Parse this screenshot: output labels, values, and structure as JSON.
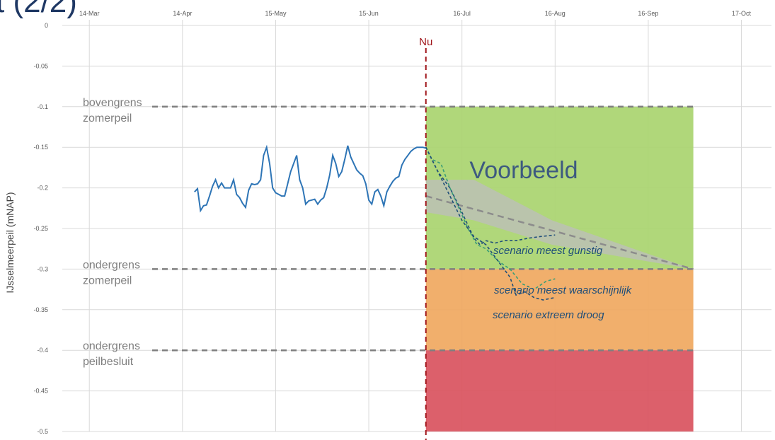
{
  "page": {
    "title_fragment": "t (2/2)"
  },
  "chart_data": {
    "type": "line",
    "title": "",
    "xlabel": "",
    "ylabel": "IJsselmeerpeil (mNAP)",
    "ylim": [
      -0.5,
      0
    ],
    "y_ticks": [
      "0",
      "-0.05",
      "-0.1",
      "-0.15",
      "-0.2",
      "-0.25",
      "-0.3",
      "-0.35",
      "-0.4",
      "-0.45",
      "-0.5"
    ],
    "x_range": [
      "2020-03-05",
      "2020-10-27"
    ],
    "x_ticks": [
      {
        "date": "2020-03-14",
        "label": "14-Mar"
      },
      {
        "date": "2020-04-14",
        "label": "14-Apr"
      },
      {
        "date": "2020-05-15",
        "label": "15-May"
      },
      {
        "date": "2020-06-15",
        "label": "15-Jun"
      },
      {
        "date": "2020-07-16",
        "label": "16-Jul"
      },
      {
        "date": "2020-08-16",
        "label": "16-Aug"
      },
      {
        "date": "2020-09-16",
        "label": "16-Sep"
      },
      {
        "date": "2020-10-17",
        "label": "17-Oct"
      }
    ],
    "now": {
      "date": "2020-07-04",
      "label": "Nu",
      "color": "#a0161b"
    },
    "watermark": {
      "text": "Voorbeeld",
      "color": "#3d5a80"
    },
    "zones": [
      {
        "y_top": -0.1,
        "y_bottom": -0.3,
        "color": "#a9d46f"
      },
      {
        "y_top": -0.3,
        "y_bottom": -0.4,
        "color": "#f0a860"
      },
      {
        "y_top": -0.4,
        "y_bottom": -0.5,
        "color": "#d9525e"
      }
    ],
    "zone_x_range": [
      "2020-07-04",
      "2020-10-01"
    ],
    "reference_lines": [
      {
        "y": -0.1,
        "label": [
          "bovengrens",
          "zomerpeil"
        ]
      },
      {
        "y": -0.3,
        "label": [
          "ondergrens",
          "zomerpeil"
        ]
      },
      {
        "y": -0.4,
        "label": [
          "ondergrens",
          "peilbesluit"
        ]
      }
    ],
    "uncertainty_band": {
      "x": [
        "2020-07-04",
        "2020-07-20",
        "2020-08-15",
        "2020-09-15",
        "2020-10-01"
      ],
      "upper": [
        -0.19,
        -0.19,
        -0.24,
        -0.28,
        -0.3
      ],
      "lower": [
        -0.23,
        -0.24,
        -0.27,
        -0.29,
        -0.3
      ],
      "color": "#bdbdbd"
    },
    "series": [
      {
        "name": "",
        "style": "observed",
        "color": "#2e75b6",
        "x": [
          "2020-04-18",
          "2020-04-19",
          "2020-04-20",
          "2020-04-21",
          "2020-04-22",
          "2020-04-23",
          "2020-04-24",
          "2020-04-25",
          "2020-04-26",
          "2020-04-27",
          "2020-04-28",
          "2020-04-29",
          "2020-04-30",
          "2020-05-01",
          "2020-05-02",
          "2020-05-03",
          "2020-05-04",
          "2020-05-05",
          "2020-05-06",
          "2020-05-07",
          "2020-05-08",
          "2020-05-09",
          "2020-05-10",
          "2020-05-11",
          "2020-05-12",
          "2020-05-13",
          "2020-05-14",
          "2020-05-15",
          "2020-05-16",
          "2020-05-17",
          "2020-05-18",
          "2020-05-19",
          "2020-05-20",
          "2020-05-21",
          "2020-05-22",
          "2020-05-23",
          "2020-05-24",
          "2020-05-25",
          "2020-05-26",
          "2020-05-27",
          "2020-05-28",
          "2020-05-29",
          "2020-05-30",
          "2020-05-31",
          "2020-06-01",
          "2020-06-02",
          "2020-06-03",
          "2020-06-04",
          "2020-06-05",
          "2020-06-06",
          "2020-06-07",
          "2020-06-08",
          "2020-06-09",
          "2020-06-10",
          "2020-06-11",
          "2020-06-12",
          "2020-06-13",
          "2020-06-14",
          "2020-06-15",
          "2020-06-16",
          "2020-06-17",
          "2020-06-18",
          "2020-06-19",
          "2020-06-20",
          "2020-06-21",
          "2020-06-22",
          "2020-06-23",
          "2020-06-24",
          "2020-06-25",
          "2020-06-26",
          "2020-06-27",
          "2020-06-28",
          "2020-06-29",
          "2020-06-30",
          "2020-07-01",
          "2020-07-02",
          "2020-07-03",
          "2020-07-04"
        ],
        "values": [
          -0.205,
          -0.201,
          -0.228,
          -0.222,
          -0.221,
          -0.21,
          -0.198,
          -0.19,
          -0.2,
          -0.194,
          -0.2,
          -0.2,
          -0.2,
          -0.19,
          -0.208,
          -0.212,
          -0.219,
          -0.224,
          -0.203,
          -0.195,
          -0.196,
          -0.195,
          -0.19,
          -0.16,
          -0.15,
          -0.17,
          -0.2,
          -0.206,
          -0.208,
          -0.21,
          -0.21,
          -0.195,
          -0.18,
          -0.17,
          -0.16,
          -0.19,
          -0.2,
          -0.22,
          -0.216,
          -0.215,
          -0.214,
          -0.22,
          -0.215,
          -0.212,
          -0.2,
          -0.184,
          -0.16,
          -0.17,
          -0.186,
          -0.18,
          -0.165,
          -0.148,
          -0.162,
          -0.17,
          -0.178,
          -0.182,
          -0.185,
          -0.195,
          -0.215,
          -0.22,
          -0.205,
          -0.202,
          -0.21,
          -0.222,
          -0.205,
          -0.198,
          -0.192,
          -0.188,
          -0.186,
          -0.172,
          -0.165,
          -0.16,
          -0.155,
          -0.152,
          -0.15,
          -0.15,
          -0.15,
          -0.151
        ]
      },
      {
        "name": "",
        "style": "forecast-trend",
        "color": "#8c8c8c",
        "x": [
          "2020-07-04",
          "2020-10-01"
        ],
        "values": [
          -0.21,
          -0.3
        ]
      },
      {
        "name": "scenario meest gunstig",
        "style": "scenario",
        "color": "#1f4e79",
        "x": [
          "2020-07-04",
          "2020-07-08",
          "2020-07-12",
          "2020-07-16",
          "2020-07-20",
          "2020-07-22",
          "2020-07-24",
          "2020-07-27",
          "2020-07-30",
          "2020-08-03",
          "2020-08-07",
          "2020-08-11",
          "2020-08-16"
        ],
        "values": [
          -0.15,
          -0.18,
          -0.2,
          -0.23,
          -0.262,
          -0.27,
          -0.265,
          -0.268,
          -0.265,
          -0.265,
          -0.262,
          -0.26,
          -0.258
        ]
      },
      {
        "name": "scenario meest waarschijnlijk",
        "style": "scenario",
        "color": "#3a9e76",
        "x": [
          "2020-07-04",
          "2020-07-06",
          "2020-07-09",
          "2020-07-12",
          "2020-07-15",
          "2020-07-18",
          "2020-07-21",
          "2020-07-24",
          "2020-07-28",
          "2020-08-01",
          "2020-08-05",
          "2020-08-09",
          "2020-08-13",
          "2020-08-16"
        ],
        "values": [
          -0.15,
          -0.165,
          -0.17,
          -0.2,
          -0.225,
          -0.25,
          -0.27,
          -0.275,
          -0.29,
          -0.3,
          -0.318,
          -0.325,
          -0.315,
          -0.312
        ]
      },
      {
        "name": "scenario extreem droog",
        "style": "scenario",
        "color": "#1f4e79",
        "x": [
          "2020-07-04",
          "2020-07-08",
          "2020-07-12",
          "2020-07-16",
          "2020-07-20",
          "2020-07-24",
          "2020-07-28",
          "2020-08-01",
          "2020-08-03",
          "2020-08-06",
          "2020-08-09",
          "2020-08-12",
          "2020-08-16"
        ],
        "values": [
          -0.15,
          -0.18,
          -0.21,
          -0.24,
          -0.26,
          -0.27,
          -0.29,
          -0.31,
          -0.332,
          -0.328,
          -0.335,
          -0.338,
          -0.335
        ]
      }
    ]
  }
}
